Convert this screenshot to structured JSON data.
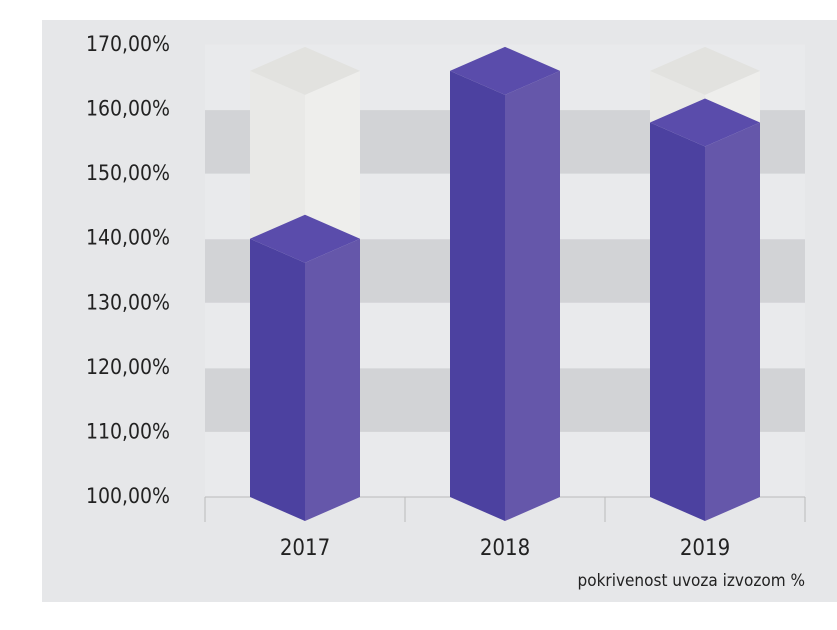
{
  "chart_data": {
    "type": "bar3d",
    "categories": [
      "2017",
      "2018",
      "2019"
    ],
    "series": [
      {
        "name": "pokrivenost uvoza izvozom %",
        "color": "#5a4cab",
        "values": [
          140,
          166,
          158
        ]
      }
    ],
    "ylim": [
      100,
      170
    ],
    "yticks": [
      {
        "value": 100,
        "label": "100,00%"
      },
      {
        "value": 110,
        "label": "110,00%"
      },
      {
        "value": 120,
        "label": "120,00%"
      },
      {
        "value": 130,
        "label": "130,00%"
      },
      {
        "value": 140,
        "label": "140,00%"
      },
      {
        "value": 150,
        "label": "150,00%"
      },
      {
        "value": 160,
        "label": "160,00%"
      },
      {
        "value": 170,
        "label": "170,00%"
      }
    ],
    "grid": true
  }
}
